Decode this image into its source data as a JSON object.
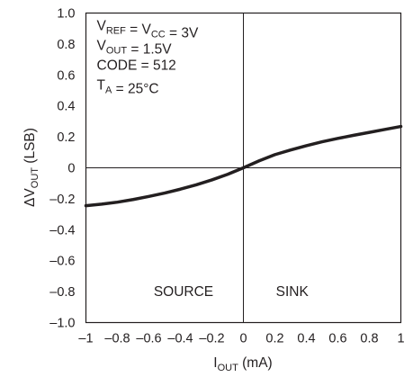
{
  "chart_data": {
    "type": "line",
    "xlabel": {
      "main": "I",
      "sub": "OUT",
      "rest": " (mA)"
    },
    "ylabel": {
      "main": "ΔV",
      "sub": "OUT",
      "rest": " (LSB)"
    },
    "xlim": [
      -1,
      1
    ],
    "ylim": [
      -1.0,
      1.0
    ],
    "x_ticks": [
      -1,
      -0.8,
      -0.6,
      -0.4,
      -0.2,
      0,
      0.2,
      0.4,
      0.6,
      0.8,
      1
    ],
    "x_tick_labels": [
      "–1",
      "–0.8",
      "–0.6",
      "–0.4",
      "–0.2",
      "0",
      "0.2",
      "0.4",
      "0.6",
      "0.8",
      "1"
    ],
    "y_ticks": [
      1.0,
      0.8,
      0.6,
      0.4,
      0.2,
      0,
      -0.2,
      -0.4,
      -0.6,
      -0.8,
      -1.0
    ],
    "y_tick_labels": [
      "1.0",
      "0.8",
      "0.6",
      "0.4",
      "0.2",
      "0",
      "–0.2",
      "–0.4",
      "–0.6",
      "–0.8",
      "–1.0"
    ],
    "grid": "center-crosshair",
    "conditions": [
      {
        "parts": [
          [
            "V",
            ""
          ],
          [
            "REF",
            "sub"
          ],
          [
            " = V",
            ""
          ],
          [
            "CC",
            "sub"
          ],
          [
            " = 3V",
            ""
          ]
        ]
      },
      {
        "parts": [
          [
            "V",
            ""
          ],
          [
            "OUT",
            "sub"
          ],
          [
            " = 1.5V",
            ""
          ]
        ]
      },
      {
        "parts": [
          [
            "CODE = 512",
            ""
          ]
        ]
      },
      {
        "parts": [
          [
            "T",
            ""
          ],
          [
            "A",
            "sub"
          ],
          [
            " = 25°C",
            ""
          ]
        ]
      }
    ],
    "region_labels": [
      {
        "text": "SOURCE",
        "x": -0.38,
        "y": -0.8
      },
      {
        "text": "SINK",
        "x": 0.31,
        "y": -0.8
      }
    ],
    "series": [
      {
        "x": [
          -1.0,
          -0.9,
          -0.8,
          -0.7,
          -0.6,
          -0.5,
          -0.4,
          -0.3,
          -0.2,
          -0.1,
          0.0,
          0.1,
          0.2,
          0.3,
          0.4,
          0.5,
          0.6,
          0.7,
          0.8,
          0.9,
          1.0
        ],
        "y": [
          -0.245,
          -0.235,
          -0.222,
          -0.205,
          -0.185,
          -0.163,
          -0.138,
          -0.11,
          -0.078,
          -0.042,
          0.0,
          0.045,
          0.085,
          0.115,
          0.143,
          0.168,
          0.19,
          0.21,
          0.229,
          0.248,
          0.267
        ]
      }
    ]
  }
}
